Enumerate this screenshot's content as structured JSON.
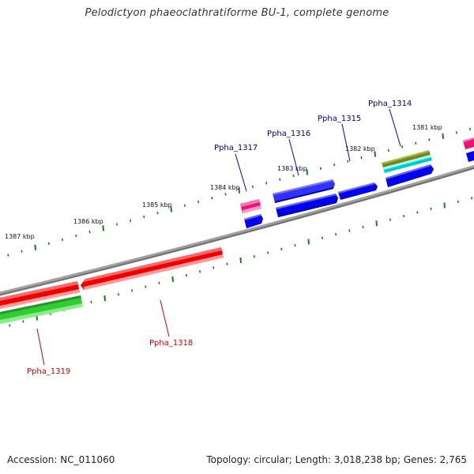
{
  "title": "Pelodictyon phaeoclathratiforme BU-1, complete genome",
  "footer": {
    "accession": "Accession: NC_011060",
    "summary": "Topology: circular; Length: 3,018,238 bp; Genes: 2,765"
  },
  "ticks": [
    {
      "label": "1387 kbp"
    },
    {
      "label": "1386 kbp"
    },
    {
      "label": "1385 kbp"
    },
    {
      "label": "1384 kbp"
    },
    {
      "label": "1383 kbp"
    },
    {
      "label": "1382 kbp"
    },
    {
      "label": "1381 kbp"
    }
  ],
  "genes": [
    {
      "label": "Ppha_1314",
      "color": "#00008b"
    },
    {
      "label": "Ppha_1315",
      "color": "#00008b"
    },
    {
      "label": "Ppha_1316",
      "color": "#00008b"
    },
    {
      "label": "Ppha_1317",
      "color": "#00008b"
    },
    {
      "label": "Ppha_1318",
      "color": "#cc0000"
    },
    {
      "label": "Ppha_1319",
      "color": "#cc0000"
    }
  ],
  "colors": {
    "backbone": "#808080",
    "tick": "#1a7a1a",
    "blue": "#0000ee",
    "red": "#ee0000",
    "green": "#33cc33",
    "pink": "#ee1177",
    "olive": "#668811",
    "cyan": "#00cccc"
  }
}
